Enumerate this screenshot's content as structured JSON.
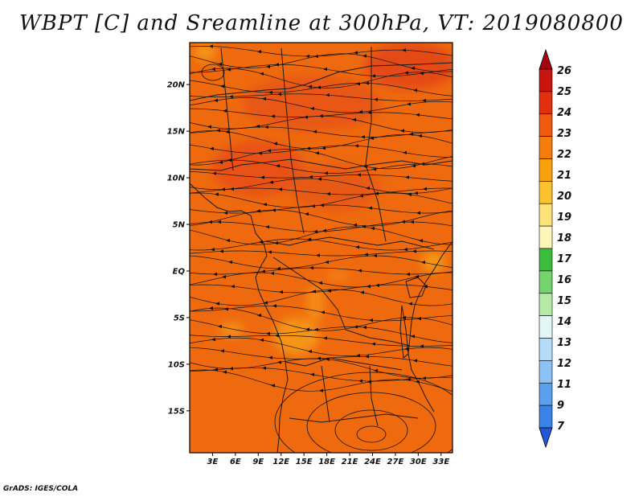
{
  "title": "WBPT [C] and Sreamline at 300hPa, VT: 2019080800",
  "credit": "GrADS: IGES/COLA",
  "map": {
    "lon_range": [
      0,
      34.5
    ],
    "lat_range": [
      -19.5,
      24.5
    ],
    "background_color": "#ef6a0f",
    "lat_ticks": [
      {
        "label": "20N",
        "value": 20
      },
      {
        "label": "15N",
        "value": 15
      },
      {
        "label": "10N",
        "value": 10
      },
      {
        "label": "5N",
        "value": 5
      },
      {
        "label": "EQ",
        "value": 0
      },
      {
        "label": "5S",
        "value": -5
      },
      {
        "label": "10S",
        "value": -10
      },
      {
        "label": "15S",
        "value": -15
      }
    ],
    "lon_ticks": [
      {
        "label": "3E",
        "value": 3
      },
      {
        "label": "6E",
        "value": 6
      },
      {
        "label": "9E",
        "value": 9
      },
      {
        "label": "12E",
        "value": 12
      },
      {
        "label": "15E",
        "value": 15
      },
      {
        "label": "18E",
        "value": 18
      },
      {
        "label": "21E",
        "value": 21
      },
      {
        "label": "24E",
        "value": 24
      },
      {
        "label": "27E",
        "value": 27
      },
      {
        "label": "30E",
        "value": 30
      },
      {
        "label": "33E",
        "value": 33
      }
    ],
    "warm_regions": [
      {
        "lon": 9,
        "lat": 11,
        "rx": 6,
        "ry": 3,
        "color": "#e8501a"
      },
      {
        "lon": 19,
        "lat": 9,
        "rx": 6,
        "ry": 2.5,
        "color": "#e65a18"
      },
      {
        "lon": 16,
        "lat": 18,
        "rx": 9,
        "ry": 3,
        "color": "#e75417"
      },
      {
        "lon": 29,
        "lat": 22,
        "rx": 6,
        "ry": 2.5,
        "color": "#e24616"
      }
    ],
    "cool_regions": [
      {
        "lon": 14,
        "lat": -7,
        "rx": 3,
        "ry": 2,
        "color": "#f59a18"
      },
      {
        "lon": 5.5,
        "lat": -6.3,
        "rx": 1.6,
        "ry": 0.7,
        "color": "#f39a1f"
      },
      {
        "lon": 16.5,
        "lat": -3.5,
        "rx": 1.2,
        "ry": 2,
        "color": "#f58e18"
      },
      {
        "lon": 32,
        "lat": 1,
        "rx": 1.6,
        "ry": 1.2,
        "color": "#f59a18"
      },
      {
        "lon": 19.5,
        "lat": -0.5,
        "rx": 1.5,
        "ry": 0.4,
        "color": "#f59020"
      },
      {
        "lon": 2,
        "lat": 23.5,
        "rx": 1.5,
        "ry": 1,
        "color": "#f59a18"
      }
    ]
  },
  "colorbar": {
    "levels": [
      {
        "label": "26",
        "color": "#a5000f"
      },
      {
        "label": "25",
        "color": "#c8140d"
      },
      {
        "label": "24",
        "color": "#e2300e"
      },
      {
        "label": "23",
        "color": "#ef5a10"
      },
      {
        "label": "22",
        "color": "#f57d0c"
      },
      {
        "label": "21",
        "color": "#f8a10f"
      },
      {
        "label": "20",
        "color": "#fac22e"
      },
      {
        "label": "19",
        "color": "#fde27a"
      },
      {
        "label": "18",
        "color": "#fef6b8"
      },
      {
        "label": "17",
        "color": "#3cbc3c"
      },
      {
        "label": "16",
        "color": "#74d46c"
      },
      {
        "label": "15",
        "color": "#b4eaa6"
      },
      {
        "label": "14",
        "color": "#e2f6f8"
      },
      {
        "label": "13",
        "color": "#b4dcf8"
      },
      {
        "label": "12",
        "color": "#8cc2f4"
      },
      {
        "label": "11",
        "color": "#5aa0ee"
      },
      {
        "label": "9",
        "color": "#3a82e6"
      },
      {
        "label": "7",
        "color": "#1e5ad8"
      }
    ]
  }
}
